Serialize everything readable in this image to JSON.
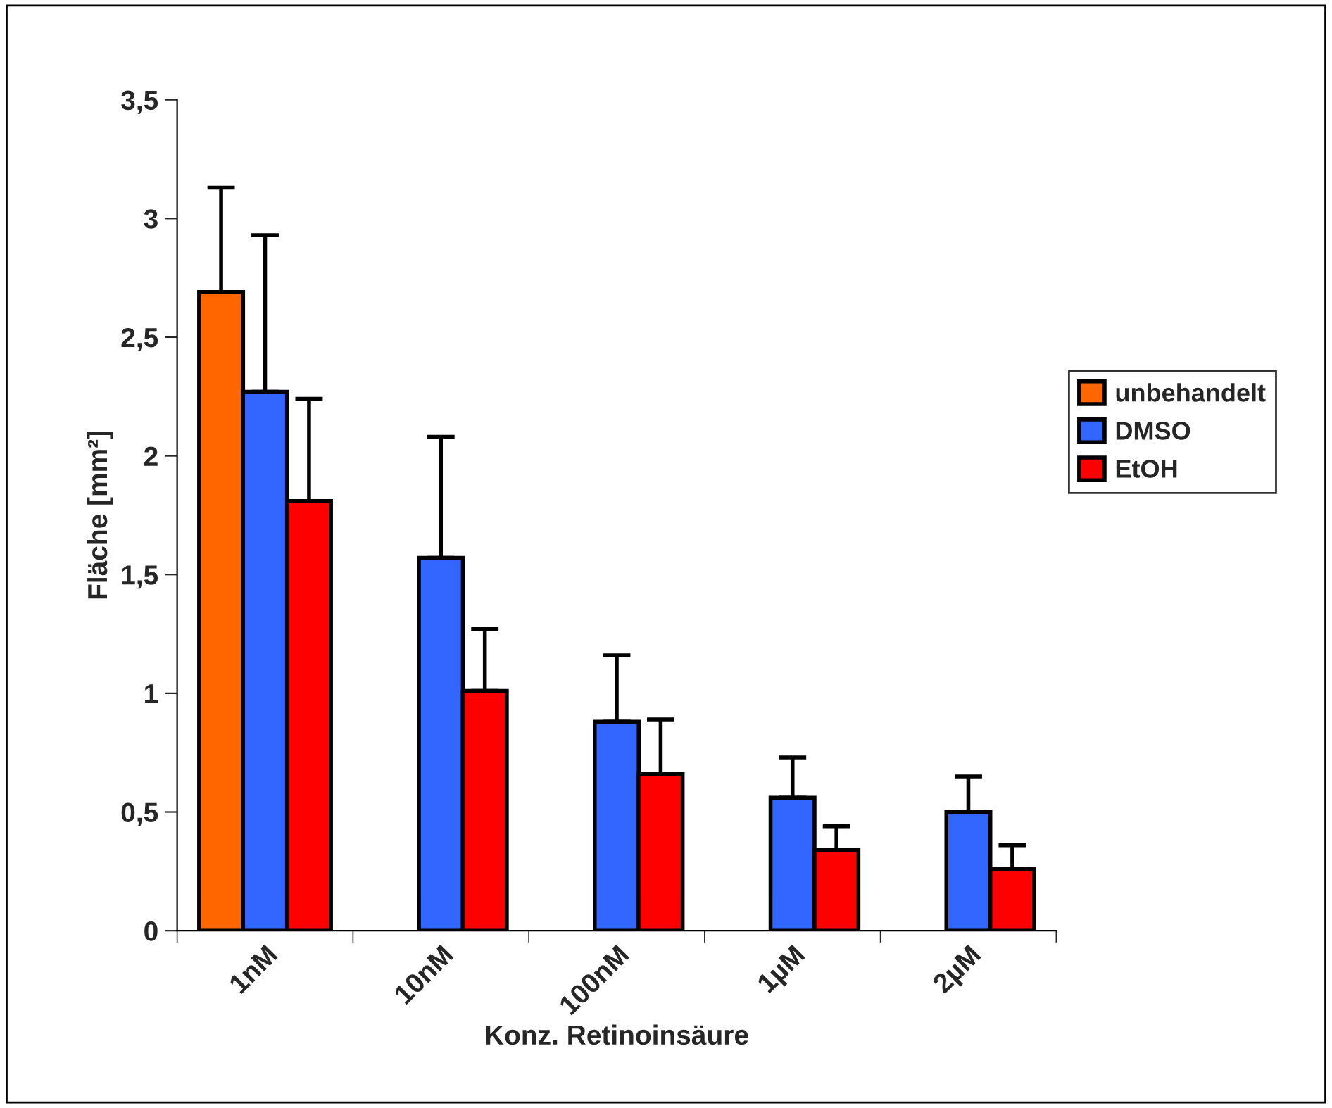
{
  "chart_data": {
    "type": "bar",
    "xlabel": "Konz. Retinoinsäure",
    "ylabel": "Fläche [mm²]",
    "categories": [
      "1nM",
      "10nM",
      "100nM",
      "1µM",
      "2µM"
    ],
    "series": [
      {
        "name": "unbehandelt",
        "color": "#ff6600",
        "values": [
          2.69,
          null,
          null,
          null,
          null
        ],
        "errors": [
          [
            2.69,
            3.13
          ],
          null,
          null,
          null,
          null
        ]
      },
      {
        "name": "DMSO",
        "color": "#3366ff",
        "values": [
          2.27,
          1.57,
          0.88,
          0.56,
          0.5
        ],
        "errors": [
          [
            2.27,
            2.93
          ],
          [
            1.57,
            2.08
          ],
          [
            0.88,
            1.16
          ],
          [
            0.56,
            0.73
          ],
          [
            0.5,
            0.65
          ]
        ]
      },
      {
        "name": "EtOH",
        "color": "#ff0000",
        "values": [
          1.81,
          1.01,
          0.66,
          0.34,
          0.26
        ],
        "errors": [
          [
            1.81,
            2.24
          ],
          [
            1.01,
            1.27
          ],
          [
            0.66,
            0.89
          ],
          [
            0.34,
            0.44
          ],
          [
            0.26,
            0.36
          ]
        ]
      }
    ],
    "ylim": [
      0,
      3.5
    ],
    "yticks": [
      {
        "value": 0,
        "label": "0"
      },
      {
        "value": 0.5,
        "label": "0,5"
      },
      {
        "value": 1,
        "label": "1"
      },
      {
        "value": 1.5,
        "label": "1,5"
      },
      {
        "value": 2,
        "label": "2"
      },
      {
        "value": 2.5,
        "label": "2,5"
      },
      {
        "value": 3,
        "label": "3"
      },
      {
        "value": 3.5,
        "label": "3,5"
      }
    ],
    "legend": "right",
    "grid": false
  }
}
